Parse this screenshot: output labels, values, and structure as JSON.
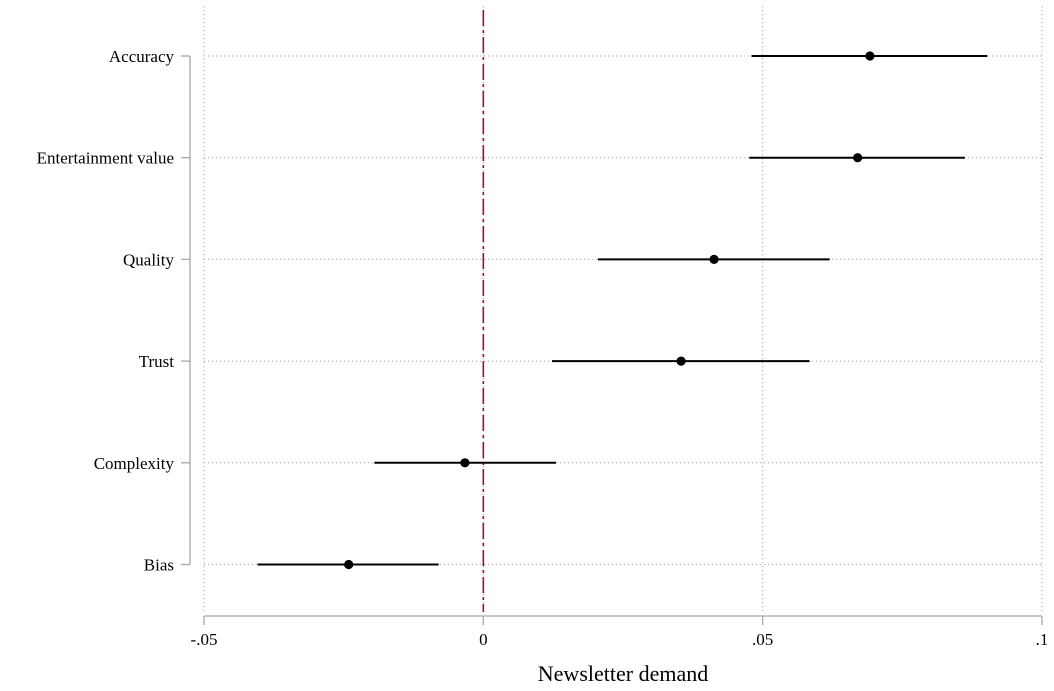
{
  "chart_data": {
    "type": "scatter",
    "subtype": "coefficient-plot-with-confidence-intervals",
    "title": "",
    "xlabel": "Newsletter demand",
    "ylabel": "",
    "xlim": [
      -0.05,
      0.1
    ],
    "xticks": [
      -0.05,
      0,
      0.05,
      0.1
    ],
    "xtick_labels": [
      "-.05",
      "0",
      ".05",
      ".1"
    ],
    "grid": true,
    "grid_style": "dotted",
    "reference_line": {
      "x": 0,
      "style": "dash-dot",
      "color": "#8b1a2b"
    },
    "categories": [
      "Accuracy",
      "Entertainment value",
      "Quality",
      "Trust",
      "Complexity",
      "Bias"
    ],
    "series": [
      {
        "estimates": [
          0.0692,
          0.067,
          0.0413,
          0.0354,
          -0.0033,
          -0.0241
        ],
        "ci_low": [
          0.048,
          0.0476,
          0.0205,
          0.0123,
          -0.0195,
          -0.0404
        ],
        "ci_high": [
          0.0902,
          0.0862,
          0.062,
          0.0584,
          0.013,
          -0.008
        ]
      }
    ],
    "colors": {
      "marker": "#000000",
      "ci_line": "#000000",
      "grid": "#a8a8a8",
      "axis": "#a8a8a8",
      "reference": "#8b1a2b"
    }
  }
}
